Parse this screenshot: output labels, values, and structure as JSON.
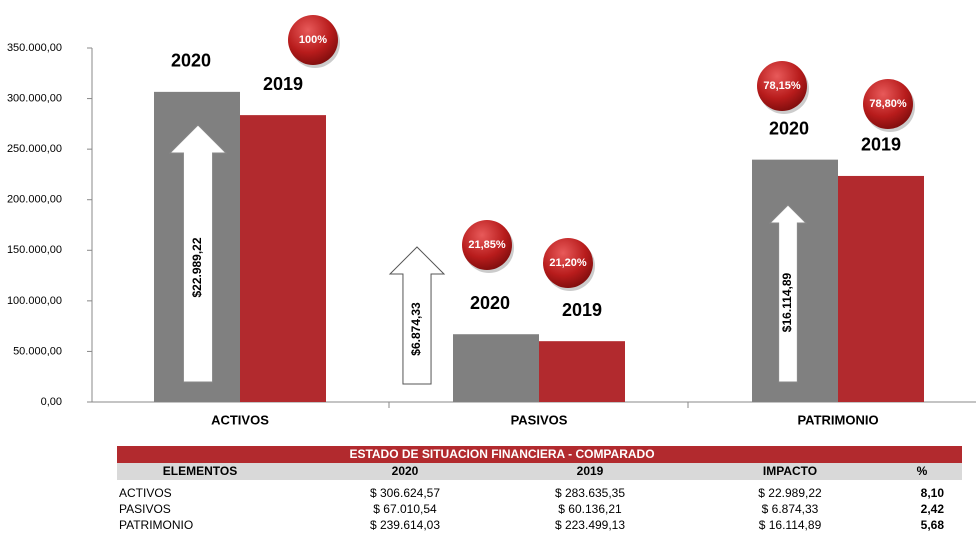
{
  "chart_data": {
    "type": "bar",
    "categories": [
      "ACTIVOS",
      "PASIVOS",
      "PATRIMONIO"
    ],
    "series": [
      {
        "name": "2020",
        "color": "#808080",
        "values": [
          306624.57,
          67010.54,
          239614.03
        ]
      },
      {
        "name": "2019",
        "color": "#b22a2e",
        "values": [
          283635.35,
          60136.21,
          223499.13
        ]
      }
    ],
    "ylim": [
      0,
      350000
    ],
    "yticks": [
      {
        "value": 0,
        "label": "0,00"
      },
      {
        "value": 50000,
        "label": "50.000,00"
      },
      {
        "value": 100000,
        "label": "100.000,00"
      },
      {
        "value": 150000,
        "label": "150.000,00"
      },
      {
        "value": 200000,
        "label": "200.000,00"
      },
      {
        "value": 250000,
        "label": "250.000,00"
      },
      {
        "value": 300000,
        "label": "300.000,00"
      },
      {
        "value": 350000,
        "label": "350.000,00"
      }
    ],
    "grid": false,
    "percent_labels": [
      "100%",
      "21,85%",
      "21,20%",
      "78,15%",
      "78,80%"
    ],
    "arrow_labels": [
      "$22.989,22",
      "$6.874,33",
      "$16.114,89"
    ]
  },
  "table": {
    "title": "ESTADO DE SITUACION FINANCIERA - COMPARADO",
    "header": [
      "ELEMENTOS",
      "2020",
      "2019",
      "IMPACTO",
      "%"
    ],
    "rows": [
      [
        "ACTIVOS",
        "$ 306.624,57",
        "$ 283.635,35",
        "$ 22.989,22",
        "8,10"
      ],
      [
        "PASIVOS",
        "$ 67.010,54",
        "$ 60.136,21",
        "$ 6.874,33",
        "2,42"
      ],
      [
        "PATRIMONIO",
        "$ 239.614,03",
        "$ 223.499,13",
        "$ 16.114,89",
        "5,68"
      ]
    ]
  }
}
